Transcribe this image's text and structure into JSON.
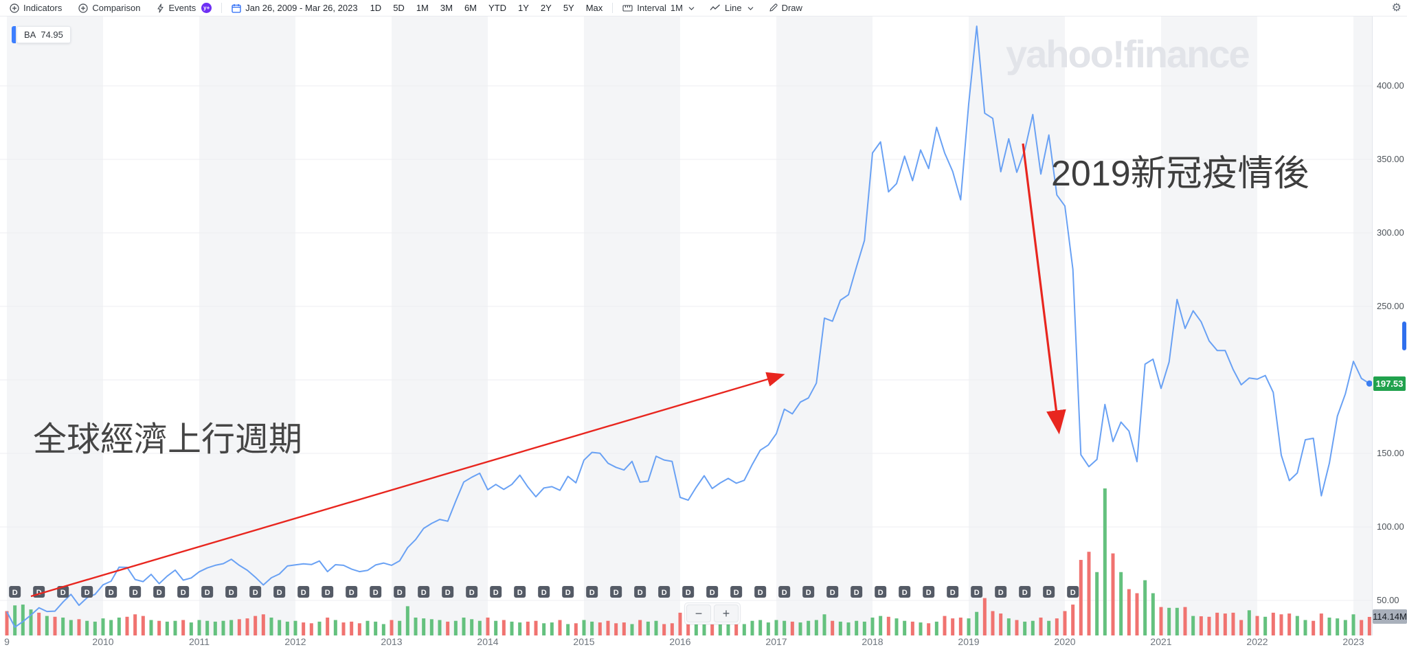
{
  "toolbar": {
    "indicators": "Indicators",
    "comparison": "Comparison",
    "events": "Events",
    "date_range": "Jan 26, 2009 - Mar 26, 2023",
    "ranges": [
      "1D",
      "5D",
      "1M",
      "3M",
      "6M",
      "YTD",
      "1Y",
      "2Y",
      "5Y",
      "Max"
    ],
    "interval_label": "Interval",
    "interval_value": "1M",
    "chart_type_label": "Line",
    "draw_label": "Draw"
  },
  "icons": {
    "premium_badge": "y+",
    "gear": "⚙"
  },
  "ticker": {
    "symbol": "BA",
    "price": "74.95"
  },
  "watermark": "yahoo!finance",
  "annotations": {
    "left": "全球經濟上行週期",
    "right": "2019新冠疫情後"
  },
  "price_axis": {
    "tick_labels": [
      "400.00",
      "350.00",
      "300.00",
      "250.00",
      "200.00",
      "150.00",
      "100.00",
      "50.00"
    ],
    "tick_values": [
      400,
      350,
      300,
      250,
      200,
      150,
      100,
      50
    ],
    "current_price": "197.53"
  },
  "x_axis": {
    "labels": [
      "9",
      "2010",
      "2011",
      "2012",
      "2013",
      "2014",
      "2015",
      "2016",
      "2017",
      "2018",
      "2019",
      "2020",
      "2021",
      "2022",
      "2023"
    ]
  },
  "volume_label": "114.14M",
  "dividend_marker": "D",
  "zoom_controls": {
    "minus": "−",
    "plus": "+"
  },
  "colors": {
    "line": "#69a1f4",
    "dot": "#3b7df0",
    "vol_up": "#64c17e",
    "vol_down": "#f07370",
    "stripe": "#f4f5f7",
    "grid": "#ededf0",
    "dividend_badge": "#555b66",
    "arrow": "#e8261f",
    "price_badge": "#21a24d",
    "accent_blue": "#3d7fff"
  },
  "chart_data": {
    "type": "line",
    "symbol": "BA",
    "title": "BA monthly close, Jan 2009 - Mar 2023",
    "x_start": "2009-01",
    "x_end": "2023-03",
    "interval": "1M",
    "ylim": [
      25,
      455
    ],
    "y_ticks": [
      50,
      100,
      150,
      200,
      250,
      300,
      350,
      400
    ],
    "legend_position": "none",
    "grid": true,
    "closes": [
      [
        42.3,
        31.8,
        35.6,
        40.0,
        45.0,
        42.5,
        42.7,
        48.9,
        54.1,
        46.7,
        51.8,
        54.1
      ],
      [
        60.6,
        63.1,
        72.6,
        72.5,
        64.2,
        62.8,
        67.7,
        61.4,
        66.5,
        70.6,
        63.8,
        65.3
      ],
      [
        69.5,
        72.1,
        73.9,
        75.0,
        78.0,
        73.9,
        70.5,
        65.8,
        60.5,
        65.4,
        68.0,
        73.4
      ],
      [
        74.2,
        74.9,
        74.4,
        76.8,
        69.6,
        74.3,
        73.9,
        71.3,
        69.6,
        70.4,
        74.1,
        75.4
      ],
      [
        73.9,
        76.9,
        85.9,
        91.4,
        99.0,
        102.4,
        105.1,
        103.9,
        117.5,
        130.5,
        133.8,
        136.5
      ],
      [
        125.3,
        128.9,
        125.5,
        128.9,
        135.2,
        127.2,
        120.5,
        126.5,
        127.4,
        124.9,
        134.4,
        130.0
      ],
      [
        145.4,
        150.7,
        150.1,
        143.3,
        140.5,
        138.7,
        144.6,
        130.4,
        131.1,
        148.1,
        145.5,
        144.6
      ],
      [
        120.1,
        118.2,
        126.9,
        134.8,
        126.1,
        129.9,
        133.0,
        129.7,
        131.7,
        142.5,
        152.2,
        155.7
      ],
      [
        163.4,
        180.1,
        176.9,
        184.9,
        187.7,
        197.8,
        242.0,
        239.9,
        254.2,
        257.9,
        276.9,
        294.9
      ],
      [
        354.4,
        361.9,
        327.9,
        333.5,
        352.2,
        335.5,
        356.4,
        343.8,
        371.8,
        354.4,
        341.8,
        322.5
      ],
      [
        387.7,
        440.6,
        381.4,
        377.9,
        341.6,
        364.0,
        341.2,
        356.4,
        380.5,
        340.0,
        366.6,
        325.8
      ],
      [
        318.3,
        275.1,
        149.1,
        141.0,
        145.9,
        183.3,
        158.1,
        171.3,
        165.2,
        144.4,
        210.7,
        214.1
      ],
      [
        194.2,
        212.1,
        254.7,
        235.0,
        247.0,
        239.6,
        226.5,
        220.0,
        220.0,
        207.0,
        196.7,
        201.3
      ],
      [
        200.5,
        203.0,
        191.5,
        148.8,
        131.5,
        136.7,
        159.3,
        160.3,
        121.1,
        143.3,
        175.4,
        190.5
      ],
      [
        212.6,
        201.0,
        197.53
      ]
    ],
    "volumes_millions": [
      [
        150,
        185,
        190,
        160,
        140,
        120,
        115,
        110,
        95,
        100,
        90,
        85
      ],
      [
        105,
        95,
        110,
        115,
        130,
        120,
        95,
        90,
        85,
        90,
        95,
        80
      ],
      [
        95,
        90,
        85,
        90,
        95,
        100,
        105,
        120,
        130,
        110,
        95,
        85
      ],
      [
        90,
        80,
        75,
        85,
        110,
        95,
        80,
        85,
        75,
        90,
        85,
        70
      ],
      [
        95,
        90,
        180,
        110,
        105,
        100,
        95,
        85,
        90,
        110,
        100,
        90
      ],
      [
        110,
        90,
        95,
        85,
        80,
        85,
        90,
        75,
        80,
        95,
        70,
        75
      ],
      [
        95,
        85,
        80,
        90,
        75,
        80,
        70,
        95,
        85,
        90,
        70,
        75
      ],
      [
        140,
        130,
        90,
        85,
        95,
        90,
        80,
        75,
        70,
        90,
        95,
        80
      ],
      [
        95,
        90,
        85,
        80,
        90,
        95,
        130,
        90,
        85,
        80,
        90,
        85
      ],
      [
        110,
        120,
        115,
        105,
        90,
        85,
        80,
        75,
        85,
        120,
        105,
        110
      ],
      [
        105,
        145,
        230,
        150,
        135,
        105,
        95,
        85,
        90,
        110,
        90,
        105
      ],
      [
        150,
        190,
        465,
        515,
        390,
        905,
        505,
        390,
        285,
        260,
        340,
        260
      ],
      [
        175,
        170,
        170,
        175,
        120,
        118,
        115,
        140,
        135,
        140,
        95,
        155
      ],
      [
        120,
        115,
        140,
        130,
        135,
        120,
        95,
        90,
        135,
        110,
        105,
        95
      ],
      [
        130,
        95,
        114.14
      ]
    ],
    "volume_colors": [
      "rgggrgrggrgg",
      "gggrrrgrggrg",
      "gggggrrrrggg",
      "grrgrgrrrggg",
      "rggggggrgggg",
      "rgrggrrggrgr",
      "ggrrrrgrggrr",
      "rrggrggrgggg",
      "ggrggggrgggg",
      "ggrggrgrgrrr",
      "ggrrrgrggrgr",
      "rrrrggrgrrgg",
      "rggrgrrrrrrg",
      "rgrrrggrrggg",
      "grr"
    ],
    "last_price": 197.53,
    "last_volume_label": "114.14M",
    "dividend_markers_quarterly": 45,
    "stripe_years": [
      2009,
      2011,
      2013,
      2015,
      2017,
      2019,
      2021,
      2023
    ]
  }
}
